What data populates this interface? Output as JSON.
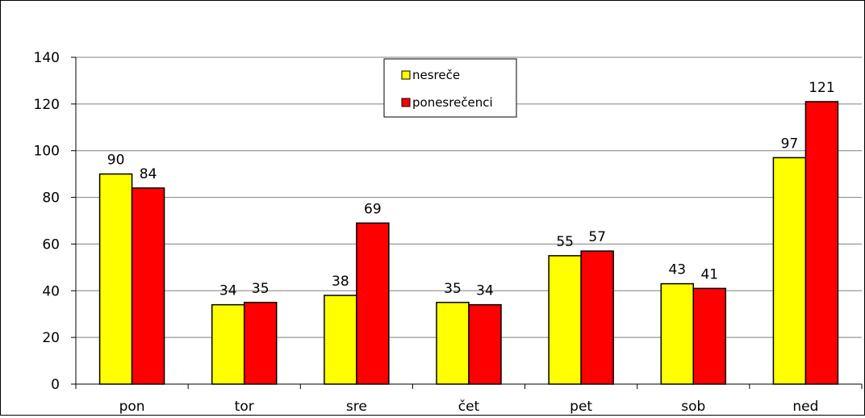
{
  "chart_data": {
    "type": "bar",
    "title": "",
    "xlabel": "",
    "ylabel": "",
    "categories": [
      "pon",
      "tor",
      "sre",
      "čet",
      "pet",
      "sob",
      "ned"
    ],
    "series": [
      {
        "name": "nesreče",
        "color": "#ffff00",
        "values": [
          90,
          34,
          38,
          35,
          55,
          43,
          97
        ]
      },
      {
        "name": "ponesrečenci",
        "color": "#ff0000",
        "values": [
          84,
          35,
          69,
          34,
          57,
          41,
          121
        ]
      }
    ],
    "ylim": [
      0,
      140
    ],
    "yticks": [
      0,
      20,
      40,
      60,
      80,
      100,
      120,
      140
    ],
    "grid": true,
    "legend_position": "top-center",
    "data_labels": true
  }
}
